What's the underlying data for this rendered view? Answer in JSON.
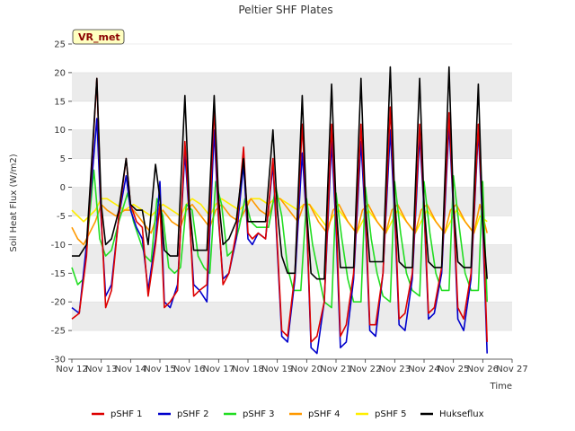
{
  "chart_data": {
    "type": "line",
    "title": "Peltier SHF Plates",
    "badge": "VR_met",
    "xlabel": "Time",
    "ylabel": "Soil Heat Flux (W/m2)",
    "ylim": [
      -30,
      25
    ],
    "yticks": [
      -30,
      -25,
      -20,
      -15,
      -10,
      -5,
      0,
      5,
      10,
      15,
      20,
      25
    ],
    "xlim": [
      12,
      27
    ],
    "xticks": [
      {
        "day": 12,
        "label": "Nov 12"
      },
      {
        "day": 13,
        "label": "Nov 13"
      },
      {
        "day": 14,
        "label": "Nov 14"
      },
      {
        "day": 15,
        "label": "Nov 15"
      },
      {
        "day": 16,
        "label": "Nov 16"
      },
      {
        "day": 17,
        "label": "Nov 17"
      },
      {
        "day": 18,
        "label": "Nov 18"
      },
      {
        "day": 19,
        "label": "Nov 19"
      },
      {
        "day": 20,
        "label": "Nov 20"
      },
      {
        "day": 21,
        "label": "Nov 21"
      },
      {
        "day": 22,
        "label": "Nov 22"
      },
      {
        "day": 23,
        "label": "Nov 23"
      },
      {
        "day": 24,
        "label": "Nov 24"
      },
      {
        "day": 25,
        "label": "Nov 25"
      },
      {
        "day": 26,
        "label": "Nov 26"
      },
      {
        "day": 27,
        "label": "Nov 27"
      }
    ],
    "grid": "horizontal bands",
    "legend_position": "bottom",
    "series": [
      {
        "name": "pSHF 1",
        "color": "#dd0000",
        "x": [
          12.0,
          12.25,
          12.5,
          12.85,
          13.0,
          13.15,
          13.35,
          13.6,
          13.85,
          14.0,
          14.2,
          14.4,
          14.6,
          14.85,
          15.0,
          15.15,
          15.35,
          15.6,
          15.85,
          16.0,
          16.15,
          16.35,
          16.6,
          16.85,
          17.0,
          17.15,
          17.35,
          17.6,
          17.85,
          18.0,
          18.15,
          18.35,
          18.6,
          18.85,
          19.0,
          19.15,
          19.35,
          19.6,
          19.85,
          20.0,
          20.15,
          20.35,
          20.6,
          20.85,
          21.0,
          21.15,
          21.35,
          21.6,
          21.85,
          22.0,
          22.15,
          22.35,
          22.6,
          22.85,
          23.0,
          23.15,
          23.35,
          23.6,
          23.85,
          24.0,
          24.15,
          24.35,
          24.6,
          24.85,
          25.0,
          25.15,
          25.35,
          25.6,
          25.85,
          26.0,
          26.15
        ],
        "y": [
          -23,
          -22,
          -12,
          19,
          -5,
          -21,
          -18,
          -5,
          5,
          -3,
          -6,
          -7,
          -19,
          -10,
          -3,
          -21,
          -20,
          -18,
          8,
          -4,
          -19,
          -18,
          -17,
          14,
          -5,
          -17,
          -15,
          -8,
          7,
          -8,
          -9,
          -8,
          -9,
          5,
          -10,
          -25,
          -26,
          -15,
          11,
          -5,
          -27,
          -26,
          -20,
          11,
          -5,
          -26,
          -24,
          -15,
          11,
          -4,
          -24,
          -24,
          -15,
          14,
          -3,
          -23,
          -22,
          -15,
          11,
          -3,
          -22,
          -21,
          -14,
          13,
          -3,
          -21,
          -23,
          -15,
          11,
          -5,
          -27
        ]
      },
      {
        "name": "pSHF 2",
        "color": "#0000cc",
        "x": [
          12.0,
          12.25,
          12.5,
          12.85,
          13.0,
          13.15,
          13.35,
          13.6,
          13.85,
          14.0,
          14.2,
          14.4,
          14.6,
          14.85,
          15.0,
          15.15,
          15.35,
          15.6,
          15.85,
          16.0,
          16.15,
          16.35,
          16.6,
          16.85,
          17.0,
          17.15,
          17.35,
          17.6,
          17.85,
          18.0,
          18.15,
          18.35,
          18.6,
          18.85,
          19.0,
          19.15,
          19.35,
          19.6,
          19.85,
          20.0,
          20.15,
          20.35,
          20.6,
          20.85,
          21.0,
          21.15,
          21.35,
          21.6,
          21.85,
          22.0,
          22.15,
          22.35,
          22.6,
          22.85,
          23.0,
          23.15,
          23.35,
          23.6,
          23.85,
          24.0,
          24.15,
          24.35,
          24.6,
          24.85,
          25.0,
          25.15,
          25.35,
          25.6,
          25.85,
          26.0,
          26.15
        ],
        "y": [
          -21,
          -22,
          -10,
          12,
          -6,
          -19,
          -17,
          -5,
          2,
          -4,
          -7,
          -9,
          -18,
          -9,
          1,
          -20,
          -21,
          -17,
          6,
          -5,
          -17,
          -18,
          -20,
          10,
          -6,
          -16,
          -15,
          -9,
          4,
          -9,
          -10,
          -8,
          -9,
          4,
          -11,
          -26,
          -27,
          -16,
          6,
          -6,
          -28,
          -29,
          -20,
          8,
          -7,
          -28,
          -27,
          -16,
          8,
          -6,
          -25,
          -26,
          -15,
          10,
          -5,
          -24,
          -25,
          -16,
          9,
          -4,
          -23,
          -22,
          -15,
          11,
          -4,
          -23,
          -25,
          -16,
          10,
          -7,
          -29
        ]
      },
      {
        "name": "pSHF 3",
        "color": "#22dd22",
        "x": [
          12.0,
          12.2,
          12.4,
          12.75,
          12.95,
          13.15,
          13.35,
          13.6,
          13.9,
          14.1,
          14.3,
          14.5,
          14.7,
          14.9,
          15.1,
          15.3,
          15.5,
          15.7,
          15.9,
          16.1,
          16.3,
          16.5,
          16.7,
          16.9,
          17.1,
          17.3,
          17.5,
          17.7,
          17.9,
          18.1,
          18.3,
          18.5,
          18.7,
          18.95,
          19.15,
          19.35,
          19.55,
          19.8,
          20.0,
          20.2,
          20.4,
          20.6,
          20.85,
          21.0,
          21.2,
          21.4,
          21.6,
          21.85,
          22.0,
          22.2,
          22.4,
          22.6,
          22.85,
          23.0,
          23.2,
          23.4,
          23.6,
          23.85,
          24.0,
          24.2,
          24.4,
          24.6,
          24.85,
          25.0,
          25.2,
          25.4,
          25.6,
          25.85,
          26.0,
          26.15
        ],
        "y": [
          -14,
          -17,
          -16,
          3,
          -9,
          -12,
          -11,
          -6,
          -1,
          -6,
          -9,
          -12,
          -13,
          -2,
          -5,
          -14,
          -15,
          -14,
          -3,
          -4,
          -12,
          -14,
          -15,
          1,
          -3,
          -12,
          -11,
          -7,
          -2,
          -6,
          -7,
          -7,
          -7,
          0,
          -5,
          -14,
          -18,
          -18,
          -2,
          -10,
          -15,
          -20,
          -21,
          -1,
          -9,
          -16,
          -20,
          -20,
          0,
          -9,
          -15,
          -19,
          -20,
          1,
          -8,
          -15,
          -18,
          -19,
          1,
          -8,
          -15,
          -18,
          -18,
          2,
          -7,
          -15,
          -18,
          -18,
          1,
          -20
        ]
      },
      {
        "name": "pSHF 4",
        "color": "#ff9900",
        "x": [
          12.0,
          12.2,
          12.4,
          12.6,
          12.8,
          13.0,
          13.2,
          13.5,
          13.8,
          14.1,
          14.4,
          14.7,
          14.9,
          15.1,
          15.4,
          15.7,
          15.9,
          16.1,
          16.4,
          16.7,
          16.9,
          17.1,
          17.4,
          17.7,
          17.9,
          18.1,
          18.4,
          18.7,
          18.9,
          19.1,
          19.4,
          19.7,
          19.9,
          20.1,
          20.4,
          20.7,
          20.9,
          21.1,
          21.4,
          21.7,
          21.9,
          22.1,
          22.4,
          22.7,
          22.9,
          23.1,
          23.4,
          23.7,
          23.9,
          24.1,
          24.4,
          24.7,
          24.9,
          25.1,
          25.4,
          25.7,
          25.9,
          26.15
        ],
        "y": [
          -7,
          -9,
          -10,
          -8,
          -6,
          -3,
          -4,
          -5,
          -4,
          -4,
          -6,
          -8,
          -5,
          -4,
          -6,
          -7,
          -4,
          -3,
          -5,
          -7,
          -4,
          -3,
          -5,
          -6,
          -4,
          -2,
          -4,
          -5,
          -2,
          -2,
          -4,
          -6,
          -3,
          -3,
          -6,
          -8,
          -4,
          -3,
          -6,
          -8,
          -4,
          -3,
          -6,
          -8,
          -4,
          -3,
          -6,
          -8,
          -4,
          -3,
          -6,
          -8,
          -4,
          -3,
          -6,
          -8,
          -3,
          -8
        ]
      },
      {
        "name": "pSHF 5",
        "color": "#ffee00",
        "x": [
          12.0,
          12.2,
          12.4,
          12.6,
          12.8,
          13.0,
          13.2,
          13.5,
          13.8,
          14.1,
          14.4,
          14.7,
          14.9,
          15.1,
          15.4,
          15.7,
          15.9,
          16.1,
          16.4,
          16.7,
          16.9,
          17.1,
          17.4,
          17.7,
          17.9,
          18.1,
          18.4,
          18.7,
          18.9,
          19.1,
          19.4,
          19.7,
          19.9,
          20.1,
          20.4,
          20.7,
          20.9,
          21.1,
          21.4,
          21.7,
          21.9,
          22.1,
          22.4,
          22.7,
          22.9,
          23.1,
          23.4,
          23.7,
          23.9,
          24.1,
          24.4,
          24.7,
          24.9,
          25.1,
          25.4,
          25.7,
          25.9,
          26.15
        ],
        "y": [
          -4,
          -5,
          -6,
          -5,
          -4,
          -2,
          -2,
          -3,
          -4,
          -3,
          -4,
          -5,
          -4,
          -3,
          -4,
          -5,
          -3,
          -2,
          -3,
          -5,
          -3,
          -2,
          -3,
          -4,
          -3,
          -2,
          -2,
          -3,
          -2,
          -2,
          -3,
          -4,
          -3,
          -3,
          -5,
          -7,
          -5,
          -4,
          -6,
          -8,
          -6,
          -4,
          -6,
          -8,
          -6,
          -4,
          -6,
          -8,
          -6,
          -4,
          -6,
          -8,
          -6,
          -4,
          -6,
          -8,
          -5,
          -6
        ]
      },
      {
        "name": "Hukseflux",
        "color": "#000000",
        "x": [
          12.0,
          12.25,
          12.5,
          12.85,
          13.0,
          13.15,
          13.35,
          13.6,
          13.85,
          14.0,
          14.2,
          14.4,
          14.6,
          14.85,
          15.0,
          15.15,
          15.35,
          15.6,
          15.85,
          16.0,
          16.15,
          16.35,
          16.6,
          16.85,
          17.0,
          17.15,
          17.35,
          17.6,
          17.85,
          18.0,
          18.15,
          18.35,
          18.6,
          18.85,
          19.0,
          19.15,
          19.35,
          19.6,
          19.85,
          20.0,
          20.15,
          20.35,
          20.6,
          20.85,
          21.0,
          21.15,
          21.35,
          21.6,
          21.85,
          22.0,
          22.15,
          22.35,
          22.6,
          22.85,
          23.0,
          23.15,
          23.35,
          23.6,
          23.85,
          24.0,
          24.15,
          24.35,
          24.6,
          24.85,
          25.0,
          25.15,
          25.35,
          25.6,
          25.85,
          26.0,
          26.15
        ],
        "y": [
          -12,
          -12,
          -10,
          19,
          -3,
          -10,
          -9,
          -4,
          5,
          -3,
          -4,
          -4,
          -10,
          4,
          -2,
          -11,
          -12,
          -12,
          16,
          -3,
          -11,
          -11,
          -11,
          16,
          -2,
          -10,
          -9,
          -6,
          5,
          -6,
          -6,
          -6,
          -6,
          10,
          -4,
          -12,
          -15,
          -15,
          16,
          -4,
          -15,
          -16,
          -16,
          18,
          -3,
          -14,
          -14,
          -14,
          19,
          -3,
          -13,
          -13,
          -13,
          21,
          -2,
          -13,
          -14,
          -14,
          19,
          -3,
          -13,
          -14,
          -14,
          21,
          -3,
          -13,
          -14,
          -14,
          18,
          -6,
          -16
        ]
      }
    ]
  }
}
